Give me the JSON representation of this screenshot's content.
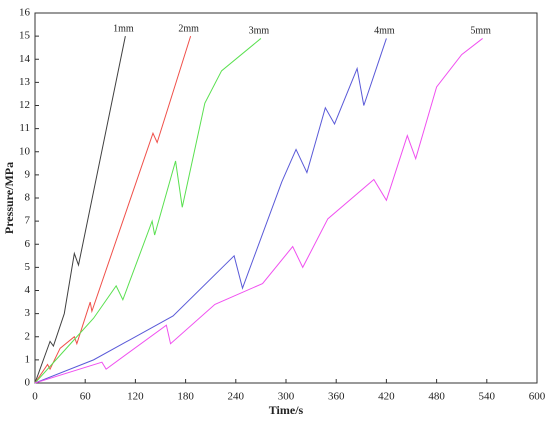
{
  "chart_data": {
    "type": "line",
    "x_label": "Time/s",
    "y_label": "Pressure/MPa",
    "xlim": [
      0,
      600
    ],
    "xticks": [
      0,
      60,
      120,
      180,
      240,
      300,
      360,
      420,
      480,
      540,
      600
    ],
    "ylim": [
      0,
      16
    ],
    "yticks": [
      0,
      1,
      2,
      3,
      4,
      5,
      6,
      7,
      8,
      9,
      10,
      11,
      12,
      13,
      14,
      15,
      16
    ],
    "series": [
      {
        "name": "1mm",
        "color": "#404040",
        "x": [
          0,
          18,
          22,
          35,
          47,
          52,
          108
        ],
        "values": [
          0,
          1.8,
          1.6,
          3,
          5.6,
          5.1,
          15
        ]
      },
      {
        "name": "2mm",
        "color": "#f0504a",
        "x": [
          0,
          15,
          18,
          30,
          47,
          50,
          66,
          68,
          141,
          146,
          186
        ],
        "values": [
          0,
          0.8,
          0.6,
          1.5,
          2,
          1.7,
          3.5,
          3.1,
          10.8,
          10.4,
          15
        ]
      },
      {
        "name": "3mm",
        "color": "#5ae050",
        "x": [
          0,
          40,
          70,
          97,
          105,
          140,
          143,
          168,
          176,
          203,
          223,
          270
        ],
        "values": [
          0,
          1.6,
          2.8,
          4.2,
          3.6,
          7,
          6.4,
          9.6,
          7.6,
          12.1,
          13.5,
          14.9
        ]
      },
      {
        "name": "4mm",
        "color": "#5a5ad8",
        "x": [
          0,
          70,
          165,
          238,
          248,
          295,
          312,
          325,
          347,
          358,
          385,
          393,
          420
        ],
        "values": [
          0,
          1,
          2.9,
          5.5,
          4.1,
          8.7,
          10.1,
          9.1,
          11.9,
          11.2,
          13.6,
          12,
          14.9
        ]
      },
      {
        "name": "5mm",
        "color": "#f050f0",
        "x": [
          0,
          80,
          85,
          157,
          162,
          215,
          272,
          308,
          320,
          350,
          405,
          420,
          445,
          455,
          480,
          510,
          535
        ],
        "values": [
          0,
          0.9,
          0.6,
          2.5,
          1.7,
          3.4,
          4.3,
          5.9,
          5,
          7.1,
          8.8,
          7.9,
          10.7,
          9.7,
          12.8,
          14.2,
          14.9
        ]
      }
    ]
  }
}
